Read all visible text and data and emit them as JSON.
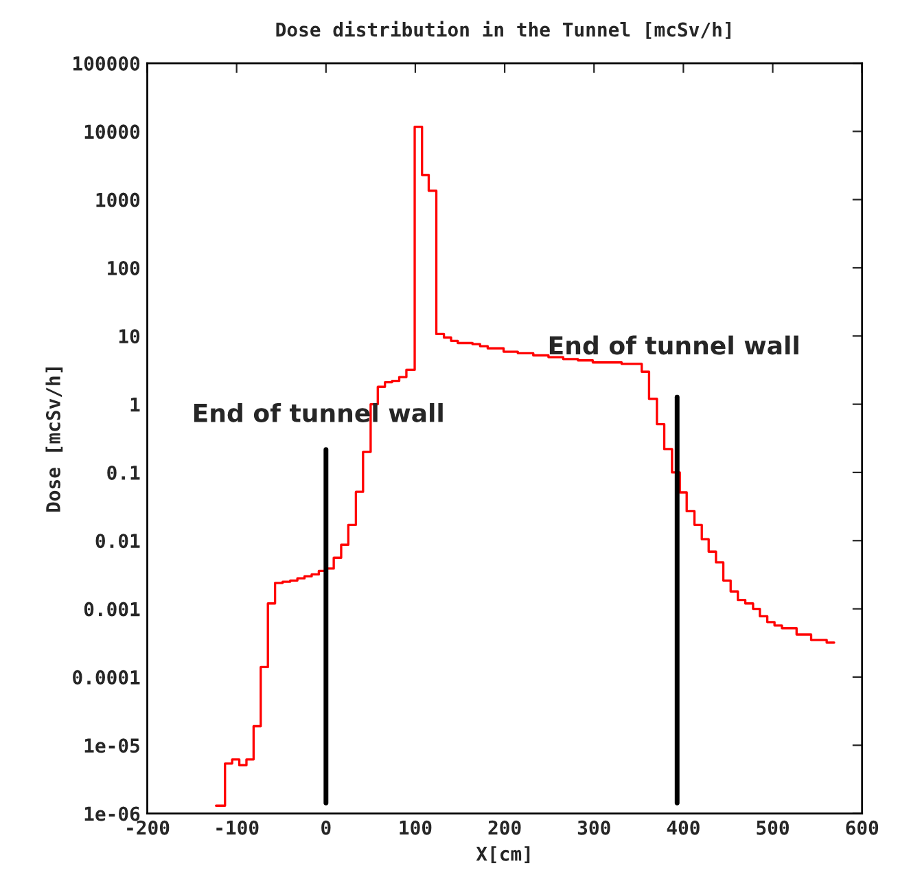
{
  "chart_data": {
    "type": "step",
    "title": "Dose distribution in the Tunnel [mcSv/h]",
    "xlabel": "X[cm]",
    "ylabel": "Dose [mcSv/h]",
    "log": "y",
    "grid": false,
    "legend": false,
    "xlim": [
      -200,
      600
    ],
    "xticks": [
      -200,
      -100,
      0,
      100,
      200,
      300,
      400,
      500,
      600
    ],
    "ylim": [
      1e-06,
      100000
    ],
    "yticks": [
      {
        "value": 1e-06,
        "label": "1e-06"
      },
      {
        "value": 1e-05,
        "label": "1e-05"
      },
      {
        "value": 0.0001,
        "label": "0.0001"
      },
      {
        "value": 0.001,
        "label": "0.001"
      },
      {
        "value": 0.01,
        "label": "0.01"
      },
      {
        "value": 0.1,
        "label": "0.1"
      },
      {
        "value": 1,
        "label": "1"
      },
      {
        "value": 10,
        "label": "10"
      },
      {
        "value": 100,
        "label": "100"
      },
      {
        "value": 1000,
        "label": "1000"
      },
      {
        "value": 10000,
        "label": "10000"
      },
      {
        "value": 100000,
        "label": "100000"
      }
    ],
    "series": [
      {
        "color": "#ff0000",
        "x": [
          -123,
          -113,
          -105,
          -97,
          -89,
          -81,
          -73,
          -65,
          -57,
          -48.5,
          -40,
          -32,
          -24,
          -16,
          -8,
          0,
          8.7,
          17,
          25,
          33.5,
          41.5,
          50,
          58,
          66,
          74,
          82,
          90,
          99.3,
          107.5,
          115,
          123.5,
          132,
          140,
          147.5,
          164,
          172.5,
          181,
          198.8,
          214.7,
          232,
          249,
          265.5,
          282,
          298.6,
          330.9,
          353.4,
          361.6,
          370.4,
          378.6,
          387.3,
          396,
          403.7,
          412.4,
          420.6,
          428.3,
          436.5,
          444.7,
          452.9,
          461,
          469.3,
          478,
          485.6,
          493.9,
          502,
          510.3,
          526.7,
          543,
          560.4,
          568.7
        ],
        "values": [
          1.3e-06,
          5.4e-06,
          6.2e-06,
          5.1e-06,
          6.2e-06,
          1.9e-05,
          0.00014,
          0.0012,
          0.0024,
          0.0025,
          0.0026,
          0.0028,
          0.003,
          0.0032,
          0.0036,
          0.0039,
          0.0056,
          0.0087,
          0.017,
          0.052,
          0.2,
          1.0,
          1.8,
          2.1,
          2.2,
          2.5,
          3.2,
          11700,
          2300,
          1350,
          10.7,
          9.5,
          8.5,
          7.9,
          7.6,
          7.1,
          6.6,
          5.9,
          5.6,
          5.2,
          4.9,
          4.6,
          4.4,
          4.1,
          3.9,
          3.0,
          1.2,
          0.51,
          0.22,
          0.1,
          0.051,
          0.027,
          0.017,
          0.0105,
          0.0069,
          0.0048,
          0.0026,
          0.0018,
          0.00135,
          0.0012,
          0.001,
          0.00078,
          0.00064,
          0.00057,
          0.00052,
          0.00042,
          0.00035,
          0.00032,
          0.00032
        ]
      }
    ],
    "ref_lines": [
      {
        "axis": "x",
        "value": 0,
        "label": "End of tunnel wall",
        "color": "#000000"
      },
      {
        "axis": "x",
        "value": 393,
        "label": "End of tunnel wall",
        "color": "#000000"
      }
    ]
  }
}
